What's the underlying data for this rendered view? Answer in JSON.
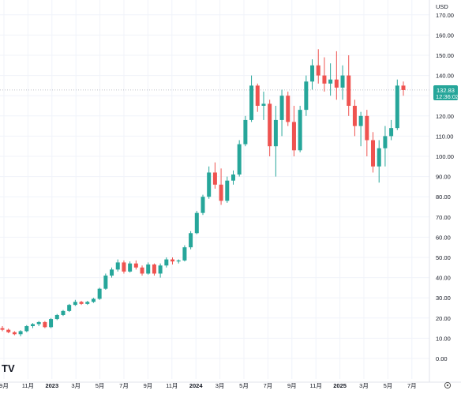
{
  "chart_data": {
    "type": "candlestick",
    "currency": "USD",
    "y_ticks": [
      "170.00",
      "160.00",
      "150.00",
      "140.00",
      "130.00",
      "120.00",
      "110.00",
      "100.00",
      "90.00",
      "80.00",
      "70.00",
      "60.00",
      "50.00",
      "40.00",
      "30.00",
      "20.00",
      "10.00",
      "0.00"
    ],
    "x_ticks": [
      "9月",
      "11月",
      "2023",
      "3月",
      "5月",
      "7月",
      "9月",
      "11月",
      "2024",
      "3月",
      "5月",
      "7月",
      "9月",
      "11月",
      "2025",
      "3月",
      "5月",
      "7月"
    ],
    "ylim": [
      0,
      175
    ],
    "last_price": "132.83",
    "countdown": "12:36:02",
    "grid": true,
    "colors": {
      "up": "#26a69a",
      "down": "#ef5350",
      "price_label_bg": "#26a69a"
    },
    "candles": [
      {
        "o": 15.0,
        "h": 16.0,
        "l": 13.5,
        "c": 14.2
      },
      {
        "o": 14.2,
        "h": 14.8,
        "l": 12.5,
        "c": 13.0
      },
      {
        "o": 13.0,
        "h": 13.5,
        "l": 11.5,
        "c": 12.0
      },
      {
        "o": 12.0,
        "h": 14.0,
        "l": 11.0,
        "c": 13.5
      },
      {
        "o": 13.5,
        "h": 16.5,
        "l": 13.0,
        "c": 16.0
      },
      {
        "o": 16.0,
        "h": 17.5,
        "l": 15.0,
        "c": 17.0
      },
      {
        "o": 17.0,
        "h": 18.5,
        "l": 16.0,
        "c": 18.0
      },
      {
        "o": 18.0,
        "h": 18.5,
        "l": 15.0,
        "c": 15.5
      },
      {
        "o": 15.5,
        "h": 20.0,
        "l": 15.0,
        "c": 19.5
      },
      {
        "o": 19.5,
        "h": 22.0,
        "l": 19.0,
        "c": 21.5
      },
      {
        "o": 21.5,
        "h": 24.0,
        "l": 21.0,
        "c": 23.5
      },
      {
        "o": 23.5,
        "h": 27.0,
        "l": 23.0,
        "c": 26.5
      },
      {
        "o": 26.5,
        "h": 29.0,
        "l": 26.0,
        "c": 28.0
      },
      {
        "o": 28.0,
        "h": 28.5,
        "l": 26.5,
        "c": 27.0
      },
      {
        "o": 27.0,
        "h": 28.5,
        "l": 26.5,
        "c": 28.0
      },
      {
        "o": 28.0,
        "h": 30.0,
        "l": 27.5,
        "c": 29.5
      },
      {
        "o": 29.5,
        "h": 35.0,
        "l": 29.0,
        "c": 34.5
      },
      {
        "o": 34.5,
        "h": 42.0,
        "l": 34.0,
        "c": 41.0
      },
      {
        "o": 41.0,
        "h": 45.0,
        "l": 40.0,
        "c": 44.0
      },
      {
        "o": 44.0,
        "h": 49.0,
        "l": 43.0,
        "c": 47.5
      },
      {
        "o": 47.5,
        "h": 48.5,
        "l": 42.0,
        "c": 43.0
      },
      {
        "o": 43.0,
        "h": 48.0,
        "l": 42.5,
        "c": 47.0
      },
      {
        "o": 47.0,
        "h": 48.5,
        "l": 44.0,
        "c": 45.0
      },
      {
        "o": 45.0,
        "h": 46.0,
        "l": 41.0,
        "c": 42.0
      },
      {
        "o": 42.0,
        "h": 47.5,
        "l": 41.5,
        "c": 46.5
      },
      {
        "o": 46.5,
        "h": 47.0,
        "l": 41.0,
        "c": 42.0
      },
      {
        "o": 42.0,
        "h": 47.0,
        "l": 40.0,
        "c": 46.0
      },
      {
        "o": 46.0,
        "h": 50.0,
        "l": 45.0,
        "c": 49.0
      },
      {
        "o": 49.0,
        "h": 50.0,
        "l": 46.5,
        "c": 48.0
      },
      {
        "o": 48.0,
        "h": 49.0,
        "l": 47.0,
        "c": 48.5
      },
      {
        "o": 48.5,
        "h": 56.0,
        "l": 48.0,
        "c": 55.0
      },
      {
        "o": 55.0,
        "h": 63.0,
        "l": 54.0,
        "c": 62.0
      },
      {
        "o": 62.0,
        "h": 73.0,
        "l": 61.5,
        "c": 72.0
      },
      {
        "o": 72.0,
        "h": 81.0,
        "l": 71.0,
        "c": 80.0
      },
      {
        "o": 80.0,
        "h": 95.0,
        "l": 79.0,
        "c": 92.0
      },
      {
        "o": 92.0,
        "h": 97.0,
        "l": 84.0,
        "c": 86.0
      },
      {
        "o": 86.0,
        "h": 94.0,
        "l": 76.0,
        "c": 78.0
      },
      {
        "o": 78.0,
        "h": 90.0,
        "l": 77.0,
        "c": 88.0
      },
      {
        "o": 88.0,
        "h": 93.0,
        "l": 86.0,
        "c": 91.0
      },
      {
        "o": 91.0,
        "h": 108.0,
        "l": 90.0,
        "c": 106.0
      },
      {
        "o": 106.0,
        "h": 120.0,
        "l": 105.0,
        "c": 118.0
      },
      {
        "o": 118.0,
        "h": 140.0,
        "l": 117.0,
        "c": 135.0
      },
      {
        "o": 135.0,
        "h": 136.0,
        "l": 122.0,
        "c": 125.0
      },
      {
        "o": 125.0,
        "h": 132.0,
        "l": 118.0,
        "c": 126.0
      },
      {
        "o": 126.0,
        "h": 128.0,
        "l": 100.0,
        "c": 105.0
      },
      {
        "o": 105.0,
        "h": 125.0,
        "l": 90.0,
        "c": 118.0
      },
      {
        "o": 118.0,
        "h": 133.0,
        "l": 110.0,
        "c": 130.0
      },
      {
        "o": 130.0,
        "h": 132.0,
        "l": 115.0,
        "c": 117.0
      },
      {
        "o": 117.0,
        "h": 125.0,
        "l": 100.0,
        "c": 103.0
      },
      {
        "o": 103.0,
        "h": 125.0,
        "l": 102.0,
        "c": 123.0
      },
      {
        "o": 123.0,
        "h": 140.0,
        "l": 120.0,
        "c": 137.0
      },
      {
        "o": 137.0,
        "h": 148.0,
        "l": 133.0,
        "c": 145.0
      },
      {
        "o": 145.0,
        "h": 153.0,
        "l": 136.0,
        "c": 140.0
      },
      {
        "o": 140.0,
        "h": 149.0,
        "l": 132.0,
        "c": 136.0
      },
      {
        "o": 136.0,
        "h": 146.0,
        "l": 130.0,
        "c": 138.0
      },
      {
        "o": 138.0,
        "h": 152.0,
        "l": 128.0,
        "c": 134.0
      },
      {
        "o": 134.0,
        "h": 145.0,
        "l": 128.0,
        "c": 140.0
      },
      {
        "o": 140.0,
        "h": 150.0,
        "l": 120.0,
        "c": 125.0
      },
      {
        "o": 125.0,
        "h": 128.0,
        "l": 110.0,
        "c": 115.0
      },
      {
        "o": 115.0,
        "h": 122.0,
        "l": 105.0,
        "c": 120.0
      },
      {
        "o": 120.0,
        "h": 123.0,
        "l": 100.0,
        "c": 108.0
      },
      {
        "o": 108.0,
        "h": 112.0,
        "l": 92.0,
        "c": 95.0
      },
      {
        "o": 95.0,
        "h": 108.0,
        "l": 87.0,
        "c": 104.0
      },
      {
        "o": 104.0,
        "h": 115.0,
        "l": 95.0,
        "c": 110.0
      },
      {
        "o": 110.0,
        "h": 118.0,
        "l": 108.0,
        "c": 114.0
      },
      {
        "o": 114.0,
        "h": 138.0,
        "l": 113.0,
        "c": 135.0
      },
      {
        "o": 135.0,
        "h": 137.0,
        "l": 130.0,
        "c": 132.83
      }
    ]
  },
  "logo": "TV"
}
